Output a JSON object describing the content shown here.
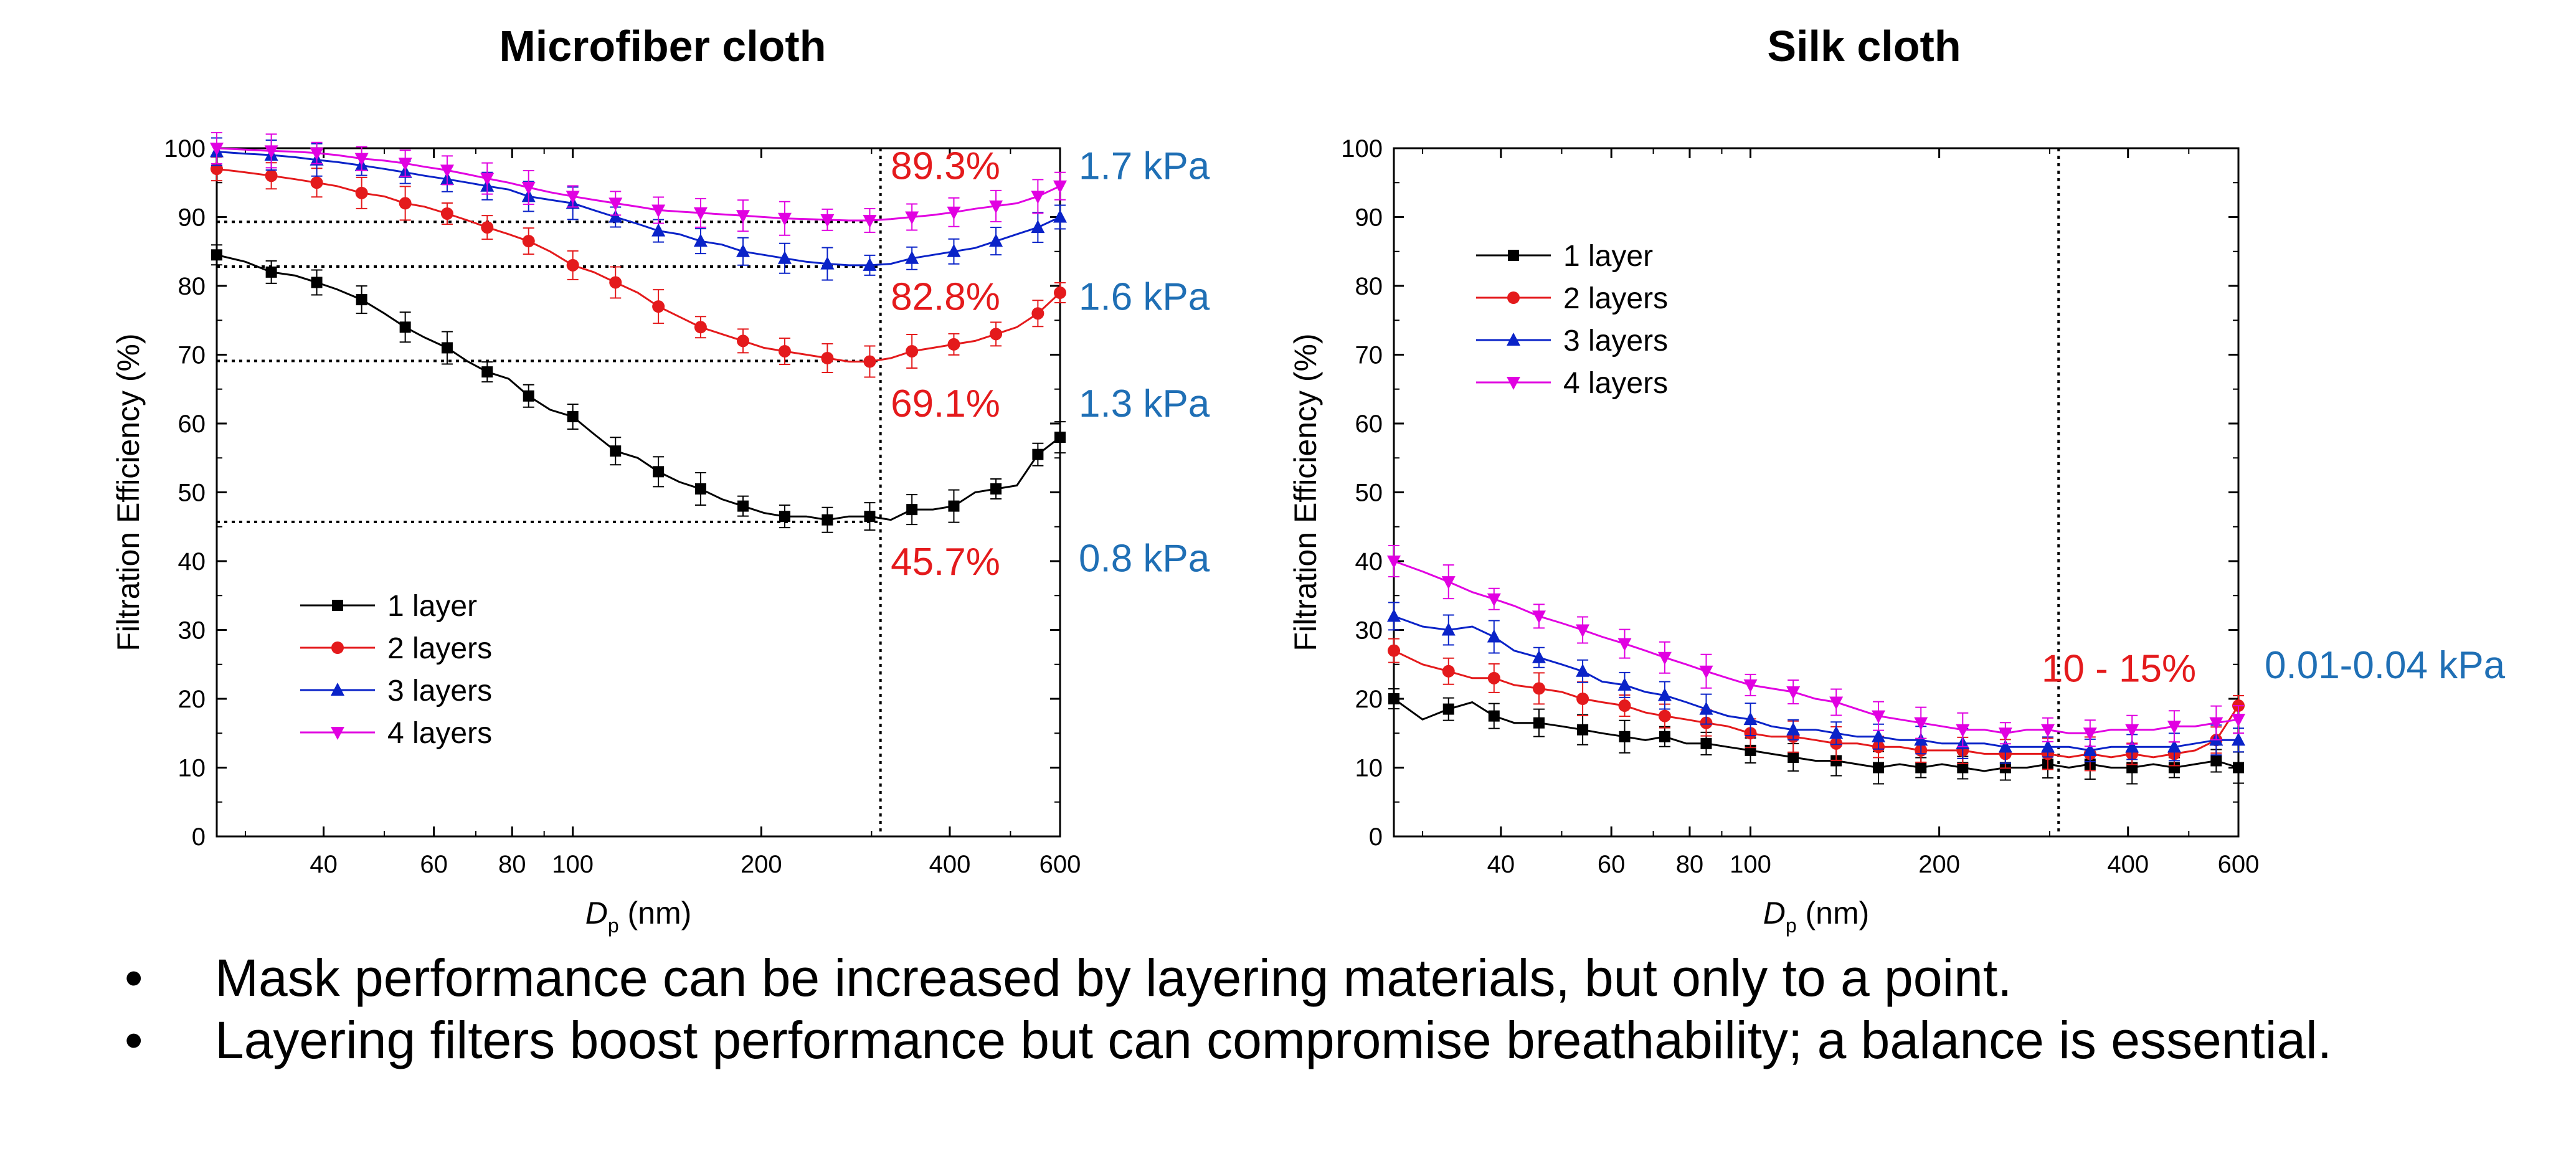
{
  "slide": {
    "bullets": [
      "Mask performance can be increased by layering materials,  but only to a point.",
      "Layering filters boost performance but can compromise breathability; a balance is essential."
    ],
    "bullet_glyph": "•"
  },
  "colors": {
    "series": [
      "#000000",
      "#e41a1c",
      "#0a23c8",
      "#e100e1"
    ],
    "pct_annotation": "#e41a1c",
    "kpa_annotation": "#1f6fb5"
  },
  "chart_data": [
    {
      "type": "line",
      "title": "Microfiber cloth",
      "xlabel": "D",
      "xlabel_sub": "p",
      "xlabel_unit": " (nm)",
      "ylabel": "Filtration Efficiency (%)",
      "xscale": "log",
      "xlim": [
        27,
        600
      ],
      "ylim": [
        0,
        100
      ],
      "xticks": [
        40,
        60,
        80,
        100,
        200,
        400,
        600
      ],
      "yticks": [
        0,
        10,
        20,
        30,
        40,
        50,
        60,
        70,
        80,
        90,
        100
      ],
      "legend": "bottom-left",
      "marker_line_x": 310,
      "x": [
        27,
        30,
        33,
        36,
        39,
        42,
        46,
        50,
        54,
        58,
        63,
        68,
        73,
        79,
        85,
        92,
        100,
        108,
        117,
        127,
        137,
        148,
        160,
        173,
        187,
        202,
        218,
        236,
        255,
        276,
        298,
        322,
        348,
        376,
        406,
        439,
        474,
        512,
        553,
        600
      ],
      "series": [
        {
          "name": "1 layer",
          "marker": "square",
          "values": [
            84.5,
            83.5,
            82,
            81.5,
            80.5,
            79.5,
            78,
            76,
            74,
            72.5,
            71,
            69,
            67.5,
            66.5,
            64,
            62,
            61,
            58.5,
            56,
            55,
            53,
            51.5,
            50.5,
            49,
            48,
            47,
            46.5,
            46.5,
            46,
            46.5,
            46.5,
            46,
            47.5,
            47.5,
            48,
            50,
            50.5,
            51,
            55.5,
            58
          ]
        },
        {
          "name": "2 layers",
          "marker": "circle",
          "values": [
            97,
            96.5,
            96,
            95.5,
            95,
            94.5,
            93.5,
            93,
            92,
            91.5,
            90.5,
            89.5,
            88.5,
            87.5,
            86.5,
            85,
            83,
            82,
            80.5,
            79,
            77,
            75.5,
            74,
            73,
            72,
            71,
            70.5,
            70,
            69.5,
            69,
            69,
            69.5,
            70.5,
            71,
            71.5,
            72,
            73,
            74,
            76,
            79
          ]
        },
        {
          "name": "3 layers",
          "marker": "triangle-up",
          "values": [
            99.5,
            99.2,
            99,
            98.7,
            98.3,
            98,
            97.5,
            97,
            96.5,
            96,
            95.5,
            95,
            94.5,
            94,
            93,
            92.5,
            92,
            91,
            90,
            89,
            88,
            87.5,
            86.5,
            86,
            85,
            84.5,
            84,
            83.5,
            83.2,
            83,
            83,
            83.2,
            84,
            84.5,
            85,
            85.5,
            86.5,
            87.5,
            88.5,
            90
          ]
        },
        {
          "name": "4 layers",
          "marker": "triangle-down",
          "values": [
            100,
            99.8,
            99.6,
            99.5,
            99.3,
            99,
            98.5,
            98.2,
            97.8,
            97.3,
            96.8,
            96.2,
            95.6,
            95,
            94.3,
            93.6,
            93,
            92.5,
            92,
            91.5,
            91,
            90.8,
            90.6,
            90.4,
            90.2,
            90,
            89.8,
            89.7,
            89.6,
            89.5,
            89.5,
            89.7,
            90,
            90.3,
            90.7,
            91.2,
            91.6,
            92,
            93,
            94.5
          ]
        }
      ],
      "hlines": [
        89.3,
        82.8,
        69.1,
        45.7
      ],
      "pct_labels": [
        {
          "text": "89.3%",
          "y": 97.5
        },
        {
          "text": "82.8%",
          "y": 78.5
        },
        {
          "text": "69.1%",
          "y": 63
        },
        {
          "text": "45.7%",
          "y": 40
        }
      ],
      "kpa_labels": [
        {
          "text": "1.7 kPa",
          "y": 97.5
        },
        {
          "text": "1.6 kPa",
          "y": 78.5
        },
        {
          "text": "1.3 kPa",
          "y": 63
        },
        {
          "text": "0.8 kPa",
          "y": 40.5
        }
      ]
    },
    {
      "type": "line",
      "title": "Silk cloth",
      "xlabel": "D",
      "xlabel_sub": "p",
      "xlabel_unit": " (nm)",
      "ylabel": "Filtration Efficiency (%)",
      "xscale": "log",
      "xlim": [
        27,
        600
      ],
      "ylim": [
        0,
        100
      ],
      "xticks": [
        40,
        60,
        80,
        100,
        200,
        400,
        600
      ],
      "yticks": [
        0,
        10,
        20,
        30,
        40,
        50,
        60,
        70,
        80,
        90,
        100
      ],
      "legend": "top-left",
      "marker_line_x": 310,
      "x": [
        27,
        30,
        33,
        36,
        39,
        42,
        46,
        50,
        54,
        58,
        63,
        68,
        73,
        79,
        85,
        92,
        100,
        108,
        117,
        127,
        137,
        148,
        160,
        173,
        187,
        202,
        218,
        236,
        255,
        276,
        298,
        322,
        348,
        376,
        406,
        439,
        474,
        512,
        553,
        600
      ],
      "series": [
        {
          "name": "1 layer",
          "marker": "square",
          "values": [
            20,
            17,
            18.5,
            19.5,
            17.5,
            16.5,
            16.5,
            16,
            15.5,
            15,
            14.5,
            14,
            14.5,
            13.5,
            13.5,
            13,
            12.5,
            12,
            11.5,
            11,
            11,
            10.5,
            10,
            10.5,
            10,
            10.5,
            10,
            9.5,
            10,
            10,
            10.5,
            10,
            10.5,
            10,
            10,
            10.5,
            10,
            10.5,
            11,
            10
          ]
        },
        {
          "name": "2 layers",
          "marker": "circle",
          "values": [
            27,
            25,
            24,
            23,
            23,
            22,
            21.5,
            21,
            20,
            19.5,
            19,
            18,
            17.5,
            17,
            16.5,
            16,
            15,
            14.5,
            14.5,
            14,
            13.5,
            13.5,
            13,
            13,
            12.5,
            12.5,
            12.5,
            12,
            12,
            12,
            12,
            11.5,
            12,
            11.5,
            12,
            11.5,
            12,
            12.5,
            14,
            19
          ]
        },
        {
          "name": "3 layers",
          "marker": "triangle-up",
          "values": [
            32,
            30.5,
            30,
            30.5,
            29,
            27,
            26,
            25,
            24,
            22.5,
            22,
            21,
            20.5,
            19.5,
            18.5,
            17.5,
            17,
            16,
            15.5,
            15.5,
            15,
            14.5,
            14.5,
            14,
            14,
            13.5,
            13.5,
            13.5,
            13,
            13,
            13,
            13,
            12.5,
            13,
            13,
            13,
            13,
            13.5,
            14,
            14
          ]
        },
        {
          "name": "4 layers",
          "marker": "triangle-down",
          "values": [
            40,
            38.5,
            37,
            35.5,
            34.5,
            33.5,
            32,
            31,
            30,
            29,
            28,
            27,
            26,
            25,
            24,
            23,
            22,
            21.5,
            21,
            20,
            19.5,
            18.5,
            17.5,
            17,
            16.5,
            16,
            15.5,
            15.5,
            15,
            15.5,
            15.5,
            15,
            15,
            15.5,
            15.5,
            15.5,
            16,
            16,
            16.5,
            17
          ]
        }
      ],
      "pct_labels": [
        {
          "text": "10 - 15%",
          "y": 24.5
        }
      ],
      "kpa_labels": [
        {
          "text": "0.01-0.04 kPa",
          "y": 25
        }
      ]
    }
  ]
}
